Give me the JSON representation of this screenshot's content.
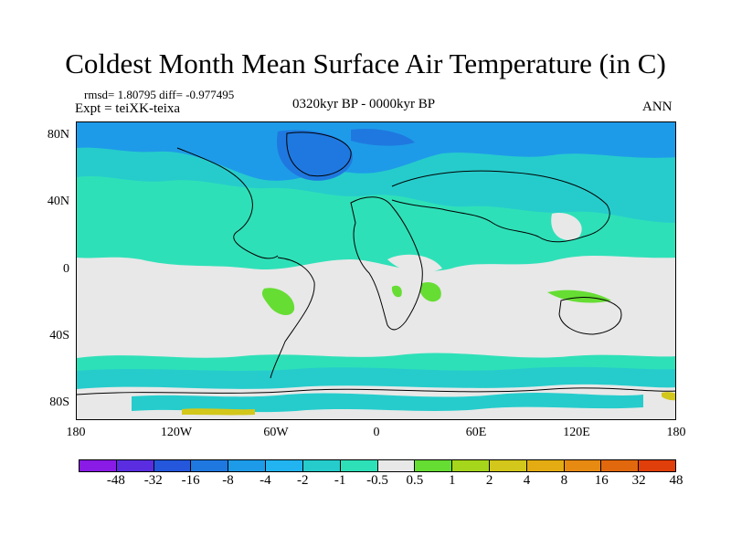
{
  "header": {
    "title": "Coldest Month Mean Surface Air Temperature (in C)",
    "stats": "rmsd= 1.80795 diff= -0.977495",
    "experiment": "Expt = teiXK-teixa",
    "period": "0320kyr BP - 0000kyr BP",
    "season": "ANN"
  },
  "axes": {
    "y_ticks": [
      "80N",
      "40N",
      "0",
      "40S",
      "80S"
    ],
    "x_ticks": [
      "180",
      "120W",
      "60W",
      "0",
      "60E",
      "120E",
      "180"
    ]
  },
  "colorbar": {
    "colors": [
      "#8a1be6",
      "#5a2ee0",
      "#2457dc",
      "#1f78e0",
      "#1e9be8",
      "#22b4f0",
      "#26cccc",
      "#2ee0b8",
      "#e8e8e8",
      "#66dd33",
      "#a5d61b",
      "#d2c71a",
      "#e4ac12",
      "#e78a12",
      "#e2680e",
      "#e03e0a"
    ],
    "labels": [
      "-48",
      "-32",
      "-16",
      "-8",
      "-4",
      "-2",
      "-1",
      "-0.5",
      "0.5",
      "1",
      "2",
      "4",
      "8",
      "16",
      "32",
      "48"
    ]
  },
  "map_colors": {
    "neutral": "#e8e8e8",
    "cool_light": "#2ee0b8",
    "cool_mid": "#26cccc",
    "cool_blue": "#1e9be8",
    "cool_deep": "#1f78e0",
    "warm_green": "#66dd33",
    "warm_yellow": "#d2c71a",
    "coast": "#000000"
  }
}
